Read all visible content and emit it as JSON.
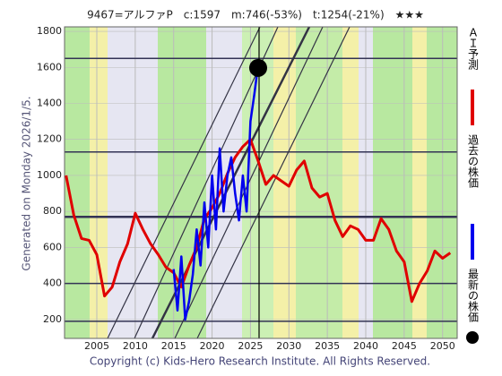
{
  "chart_data": {
    "type": "line",
    "title": "9467=アルファP　c:1597　m:746(-53%)　t:1254(-21%)　★★★",
    "side_note": "Generated on Monday 2026/1/5.",
    "footer": "Copyright (c) Kids-Hero Research Institute. All Rights Reserved.",
    "xlim": [
      2000.8,
      2051.9
    ],
    "ylim": [
      95,
      1825
    ],
    "xticks": [
      2005,
      2010,
      2015,
      2020,
      2025,
      2030,
      2035,
      2040,
      2045,
      2050
    ],
    "yticks": [
      200,
      400,
      600,
      800,
      1000,
      1200,
      1400,
      1600,
      1800
    ],
    "grid": true,
    "levels": [
      1650,
      1130,
      770,
      400,
      190
    ],
    "series": [
      {
        "name": "ＡＩ予測",
        "color": "#e00000",
        "x": [
          2001,
          2002,
          2003,
          2004,
          2005,
          2006,
          2007,
          2008,
          2009,
          2010,
          2011,
          2012,
          2013,
          2014,
          2015,
          2016,
          2017,
          2018,
          2019,
          2020,
          2021,
          2022,
          2023,
          2024,
          2025,
          2026,
          2027,
          2028,
          2029,
          2030,
          2031,
          2032,
          2033,
          2034,
          2035,
          2036,
          2037,
          2038,
          2039,
          2040,
          2041,
          2042,
          2043,
          2044,
          2045,
          2046,
          2047,
          2048,
          2049,
          2050,
          2051
        ],
        "values": [
          1000,
          780,
          650,
          640,
          560,
          330,
          380,
          520,
          620,
          790,
          700,
          620,
          560,
          490,
          460,
          380,
          500,
          600,
          760,
          820,
          900,
          1010,
          1100,
          1160,
          1200,
          1080,
          950,
          1000,
          970,
          940,
          1030,
          1080,
          930,
          880,
          900,
          750,
          660,
          720,
          700,
          640,
          640,
          760,
          700,
          580,
          520,
          300,
          400,
          470,
          580,
          540,
          570
        ]
      },
      {
        "name": "過去の株価",
        "color": "#0000ee",
        "x": [
          2015,
          2015.5,
          2016,
          2016.5,
          2017,
          2017.5,
          2018,
          2018.5,
          2019,
          2019.5,
          2020,
          2020.5,
          2021,
          2021.5,
          2022,
          2022.5,
          2023,
          2023.5,
          2024,
          2024.5,
          2025,
          2025.5,
          2025.8,
          2026
        ],
        "values": [
          480,
          250,
          550,
          200,
          300,
          450,
          700,
          500,
          850,
          600,
          1000,
          700,
          1150,
          800,
          1000,
          1100,
          900,
          750,
          1000,
          800,
          1300,
          1450,
          1550,
          1597
        ]
      },
      {
        "name": "最新の株価",
        "color": "#000000",
        "x": [
          2026
        ],
        "values": [
          1597
        ]
      }
    ]
  }
}
